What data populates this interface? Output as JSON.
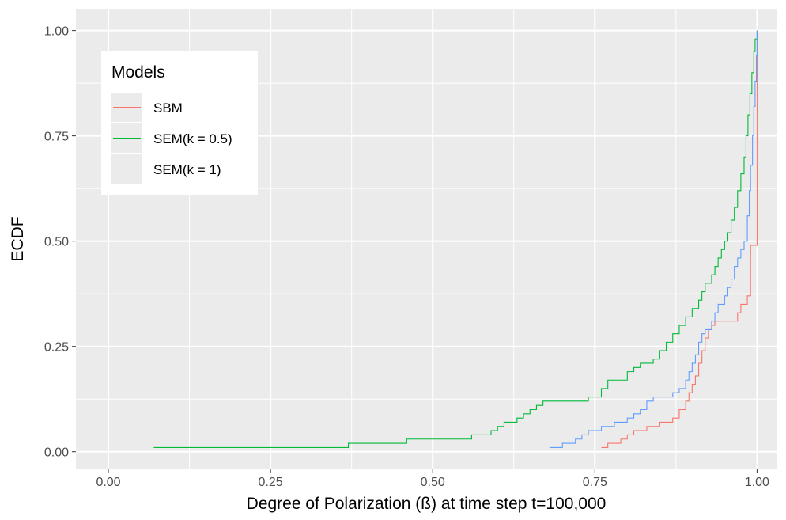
{
  "chart_data": {
    "type": "line",
    "title": "",
    "xlabel": "Degree of Polarization (ß) at time step t=100,000",
    "ylabel": "ECDF",
    "xlim": [
      -0.05,
      1.03
    ],
    "ylim": [
      -0.04,
      1.05
    ],
    "x_ticks": [
      0.0,
      0.25,
      0.5,
      0.75,
      1.0
    ],
    "x_tick_labels": [
      "0.00",
      "0.25",
      "0.50",
      "0.75",
      "1.00"
    ],
    "y_ticks": [
      0.0,
      0.25,
      0.5,
      0.75,
      1.0
    ],
    "y_tick_labels": [
      "0.00",
      "0.25",
      "0.50",
      "0.75",
      "1.00"
    ],
    "grid": true,
    "background": "#ebebeb",
    "legend": {
      "title": "Models",
      "position": "top-left"
    },
    "series": [
      {
        "name": "SBM",
        "color": "#f8766d",
        "step": true,
        "points": [
          [
            0.76,
            0.01
          ],
          [
            0.77,
            0.02
          ],
          [
            0.79,
            0.03
          ],
          [
            0.8,
            0.04
          ],
          [
            0.81,
            0.05
          ],
          [
            0.82,
            0.05
          ],
          [
            0.83,
            0.06
          ],
          [
            0.84,
            0.06
          ],
          [
            0.85,
            0.07
          ],
          [
            0.86,
            0.07
          ],
          [
            0.87,
            0.08
          ],
          [
            0.88,
            0.1
          ],
          [
            0.89,
            0.12
          ],
          [
            0.895,
            0.14
          ],
          [
            0.9,
            0.16
          ],
          [
            0.905,
            0.18
          ],
          [
            0.91,
            0.21
          ],
          [
            0.915,
            0.24
          ],
          [
            0.92,
            0.27
          ],
          [
            0.925,
            0.29
          ],
          [
            0.93,
            0.3
          ],
          [
            0.935,
            0.31
          ],
          [
            0.965,
            0.31
          ],
          [
            0.97,
            0.33
          ],
          [
            0.975,
            0.35
          ],
          [
            0.985,
            0.37
          ],
          [
            0.99,
            0.49
          ],
          [
            1.0,
            0.5
          ],
          [
            1.0,
            1.0
          ]
        ]
      },
      {
        "name": "SEM(k = 0.5)",
        "color": "#00ba38",
        "step": true,
        "points": [
          [
            0.07,
            0.01
          ],
          [
            0.37,
            0.02
          ],
          [
            0.46,
            0.03
          ],
          [
            0.56,
            0.04
          ],
          [
            0.59,
            0.05
          ],
          [
            0.6,
            0.06
          ],
          [
            0.61,
            0.07
          ],
          [
            0.63,
            0.08
          ],
          [
            0.64,
            0.09
          ],
          [
            0.65,
            0.1
          ],
          [
            0.66,
            0.11
          ],
          [
            0.67,
            0.12
          ],
          [
            0.74,
            0.13
          ],
          [
            0.76,
            0.15
          ],
          [
            0.77,
            0.17
          ],
          [
            0.8,
            0.19
          ],
          [
            0.81,
            0.2
          ],
          [
            0.82,
            0.21
          ],
          [
            0.84,
            0.22
          ],
          [
            0.85,
            0.24
          ],
          [
            0.86,
            0.26
          ],
          [
            0.87,
            0.28
          ],
          [
            0.88,
            0.3
          ],
          [
            0.89,
            0.32
          ],
          [
            0.9,
            0.34
          ],
          [
            0.91,
            0.36
          ],
          [
            0.915,
            0.38
          ],
          [
            0.92,
            0.4
          ],
          [
            0.93,
            0.42
          ],
          [
            0.935,
            0.44
          ],
          [
            0.94,
            0.46
          ],
          [
            0.945,
            0.48
          ],
          [
            0.95,
            0.5
          ],
          [
            0.955,
            0.52
          ],
          [
            0.96,
            0.55
          ],
          [
            0.965,
            0.58
          ],
          [
            0.97,
            0.62
          ],
          [
            0.975,
            0.66
          ],
          [
            0.98,
            0.7
          ],
          [
            0.983,
            0.75
          ],
          [
            0.986,
            0.8
          ],
          [
            0.989,
            0.85
          ],
          [
            0.992,
            0.9
          ],
          [
            0.995,
            0.95
          ],
          [
            0.997,
            0.98
          ],
          [
            1.0,
            1.0
          ]
        ]
      },
      {
        "name": "SEM(k = 1)",
        "color": "#619cff",
        "step": true,
        "points": [
          [
            0.68,
            0.01
          ],
          [
            0.7,
            0.02
          ],
          [
            0.72,
            0.03
          ],
          [
            0.73,
            0.04
          ],
          [
            0.74,
            0.05
          ],
          [
            0.75,
            0.05
          ],
          [
            0.76,
            0.06
          ],
          [
            0.78,
            0.07
          ],
          [
            0.8,
            0.08
          ],
          [
            0.81,
            0.09
          ],
          [
            0.82,
            0.1
          ],
          [
            0.83,
            0.12
          ],
          [
            0.84,
            0.13
          ],
          [
            0.86,
            0.13
          ],
          [
            0.87,
            0.14
          ],
          [
            0.88,
            0.15
          ],
          [
            0.89,
            0.17
          ],
          [
            0.895,
            0.19
          ],
          [
            0.9,
            0.21
          ],
          [
            0.905,
            0.23
          ],
          [
            0.91,
            0.26
          ],
          [
            0.915,
            0.28
          ],
          [
            0.92,
            0.29
          ],
          [
            0.93,
            0.31
          ],
          [
            0.935,
            0.33
          ],
          [
            0.94,
            0.35
          ],
          [
            0.95,
            0.37
          ],
          [
            0.955,
            0.39
          ],
          [
            0.96,
            0.41
          ],
          [
            0.965,
            0.44
          ],
          [
            0.97,
            0.46
          ],
          [
            0.975,
            0.48
          ],
          [
            0.98,
            0.5
          ],
          [
            0.985,
            0.56
          ],
          [
            0.988,
            0.62
          ],
          [
            0.99,
            0.68
          ],
          [
            0.993,
            0.75
          ],
          [
            0.995,
            0.82
          ],
          [
            0.997,
            0.88
          ],
          [
            0.999,
            0.94
          ],
          [
            1.0,
            1.0
          ]
        ]
      }
    ]
  }
}
